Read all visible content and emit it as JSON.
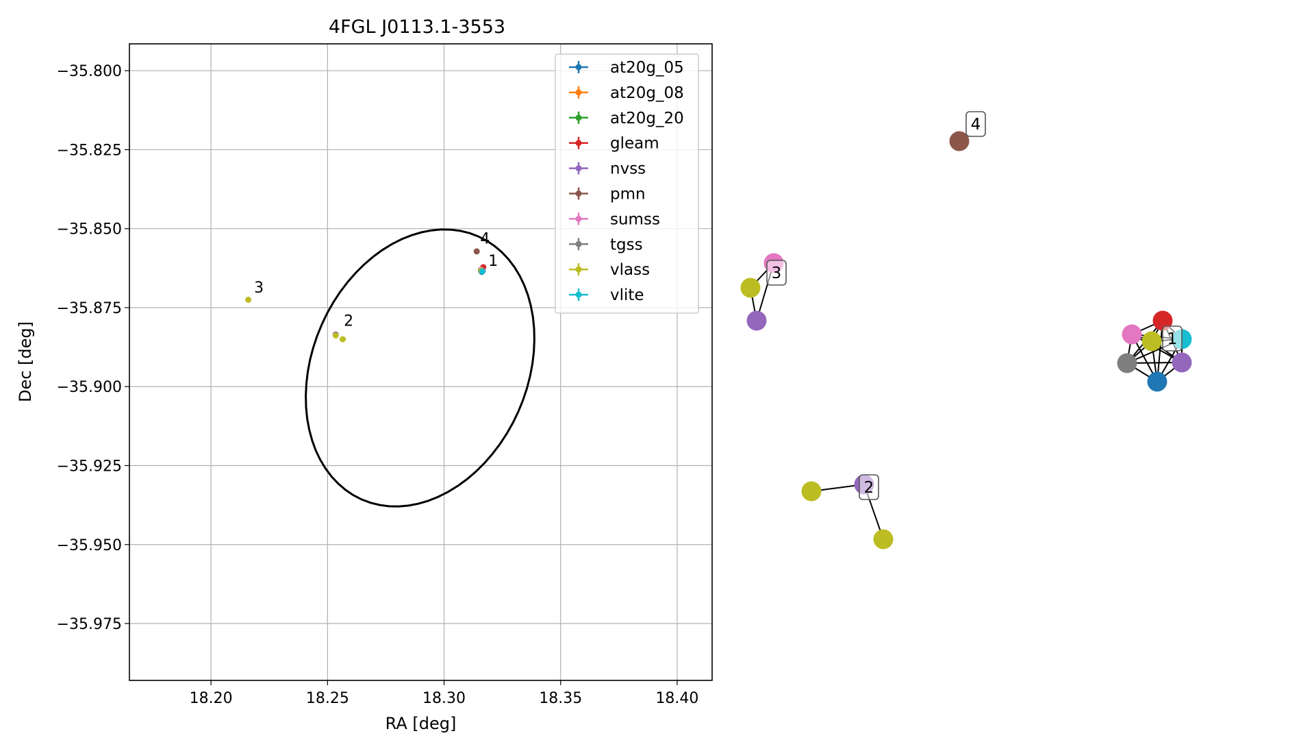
{
  "chart_data": [
    {
      "type": "scatter",
      "title": "4FGL J0113.1-3553",
      "xlabel": "RA [deg]",
      "ylabel": "Dec [deg]",
      "xlim": [
        18.165,
        18.415
      ],
      "ylim": [
        -35.993,
        -35.7915
      ],
      "x_ticks": [
        18.2,
        18.25,
        18.3,
        18.35,
        18.4
      ],
      "x_tick_labels": [
        "18.20",
        "18.25",
        "18.30",
        "18.35",
        "18.40"
      ],
      "y_ticks": [
        -35.8,
        -35.825,
        -35.85,
        -35.875,
        -35.9,
        -35.925,
        -35.95,
        -35.975
      ],
      "y_tick_labels": [
        "−35.800",
        "−35.825",
        "−35.850",
        "−35.875",
        "−35.900",
        "−35.925",
        "−35.950",
        "−35.975"
      ],
      "grid": true,
      "legend_position": "top-right",
      "series": [
        {
          "name": "at20g_05",
          "color": "#1f77b4",
          "points": [
            [
              18.3162,
              -35.8637
            ]
          ]
        },
        {
          "name": "at20g_08",
          "color": "#ff7f0e",
          "points": [
            [
              18.3162,
              -35.8634
            ]
          ]
        },
        {
          "name": "at20g_20",
          "color": "#2ca02c",
          "points": [
            [
              18.3162,
              -35.8632
            ]
          ]
        },
        {
          "name": "gleam",
          "color": "#d62728",
          "points": [
            [
              18.3168,
              -35.8622
            ]
          ]
        },
        {
          "name": "nvss",
          "color": "#9467bd",
          "points": [
            [
              18.3166,
              -35.8634
            ],
            [
              18.2535,
              -35.8835
            ]
          ]
        },
        {
          "name": "pmn",
          "color": "#8c564b",
          "points": [
            [
              18.314,
              -35.8572
            ]
          ]
        },
        {
          "name": "sumss",
          "color": "#e377c2",
          "points": [
            [
              18.3158,
              -35.863
            ]
          ]
        },
        {
          "name": "tgss",
          "color": "#7f7f7f",
          "points": [
            [
              18.3158,
              -35.8633
            ]
          ]
        },
        {
          "name": "vlass",
          "color": "#bcbd22",
          "points": [
            [
              18.316,
              -35.8632
            ],
            [
              18.2535,
              -35.8838
            ],
            [
              18.2565,
              -35.885
            ],
            [
              18.216,
              -35.8725
            ]
          ]
        },
        {
          "name": "vlite",
          "color": "#17becf",
          "points": [
            [
              18.3164,
              -35.8635
            ]
          ]
        }
      ],
      "annotations": [
        {
          "text": "1",
          "x": 18.319,
          "y": -35.86
        },
        {
          "text": "2",
          "x": 18.257,
          "y": -35.879
        },
        {
          "text": "3",
          "x": 18.2185,
          "y": -35.8685
        },
        {
          "text": "4",
          "x": 18.3155,
          "y": -35.853
        }
      ],
      "ellipse": {
        "center": [
          18.2897,
          -35.8941
        ],
        "color": "#000000"
      }
    },
    {
      "type": "network",
      "labels": [
        "1",
        "2",
        "3",
        "4"
      ],
      "colors": {
        "at20g": "#1f77b4",
        "gleam": "#d62728",
        "nvss": "#9467bd",
        "pmn": "#8c564b",
        "sumss": "#e377c2",
        "tgss": "#7f7f7f",
        "vlass": "#bcbd22",
        "vlite": "#17becf"
      }
    }
  ]
}
